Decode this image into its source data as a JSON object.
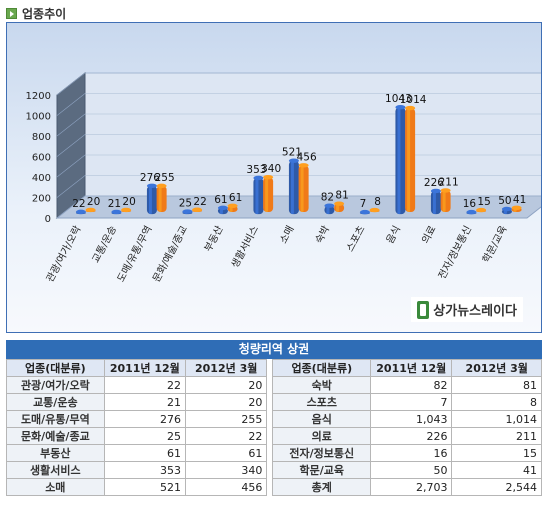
{
  "header": {
    "title": "업종추이",
    "icon": "arrow-bullet-icon"
  },
  "logo": {
    "text": "상가뉴스레이다"
  },
  "chart_data": {
    "type": "bar",
    "categories": [
      "관광/여가/오락",
      "교통/운송",
      "도매/유통/무역",
      "문화/예술/종교",
      "부동산",
      "생활서비스",
      "소매",
      "숙박",
      "스포츠",
      "음식",
      "의료",
      "전자/정보통신",
      "학문/교육"
    ],
    "series": [
      {
        "values": [
          22,
          21,
          276,
          25,
          61,
          353,
          521,
          82,
          7,
          1043,
          226,
          16,
          50
        ],
        "color": "#2e5aa8"
      },
      {
        "values": [
          20,
          20,
          255,
          22,
          61,
          340,
          456,
          81,
          8,
          1014,
          211,
          15,
          41
        ],
        "color": "#f07a18"
      }
    ],
    "data_labels": [
      [
        "22",
        "20"
      ],
      [
        "21",
        "20"
      ],
      [
        "276",
        "255"
      ],
      [
        "25",
        "22"
      ],
      [
        "61",
        "61"
      ],
      [
        "353",
        "340"
      ],
      [
        "521",
        "456"
      ],
      [
        "82",
        "81"
      ],
      [
        "7",
        "8"
      ],
      [
        "1043",
        "1014"
      ],
      [
        "226",
        "211"
      ],
      [
        "16",
        "15"
      ],
      [
        "50",
        "41"
      ]
    ],
    "yticks": [
      "0",
      "200",
      "400",
      "600",
      "800",
      "1000",
      "1200"
    ],
    "ylim": [
      0,
      1200
    ],
    "grid": true,
    "legend": "none"
  },
  "table": {
    "title": "청량리역 상권",
    "headers": [
      "업종(대분류)",
      "2011년 12월",
      "2012년 3월"
    ],
    "left_rows": [
      [
        "관광/여가/오락",
        "22",
        "20"
      ],
      [
        "교통/운송",
        "21",
        "20"
      ],
      [
        "도매/유통/무역",
        "276",
        "255"
      ],
      [
        "문화/예술/종교",
        "25",
        "22"
      ],
      [
        "부동산",
        "61",
        "61"
      ],
      [
        "생활서비스",
        "353",
        "340"
      ],
      [
        "소매",
        "521",
        "456"
      ]
    ],
    "right_rows": [
      [
        "숙박",
        "82",
        "81"
      ],
      [
        "스포츠",
        "7",
        "8"
      ],
      [
        "음식",
        "1,043",
        "1,014"
      ],
      [
        "의료",
        "226",
        "211"
      ],
      [
        "전자/정보통신",
        "16",
        "15"
      ],
      [
        "학문/교육",
        "50",
        "41"
      ],
      [
        "총계",
        "2,703",
        "2,544"
      ]
    ]
  }
}
